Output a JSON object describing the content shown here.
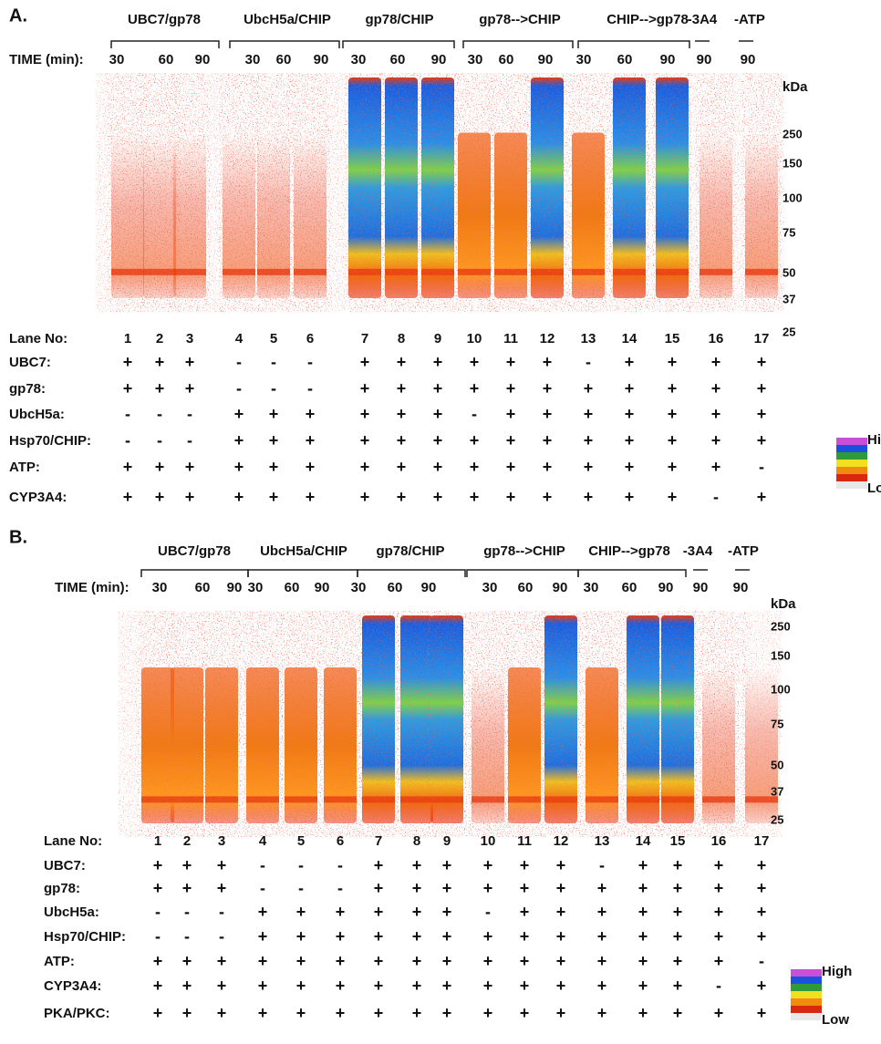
{
  "panels": [
    {
      "label": "A.",
      "groups": [
        "UBC7/gp78",
        "UbcH5a/CHIP",
        "gp78/CHIP",
        "gp78-->CHIP",
        "CHIP-->gp78",
        "-3A4",
        "-ATP"
      ],
      "time_label": "TIME (min):",
      "times": [
        "30",
        "60",
        "90",
        "30",
        "60",
        "90",
        "30",
        "60",
        "90",
        "30",
        "60",
        "90",
        "30",
        "60",
        "90",
        "90",
        "90"
      ],
      "kda_label": "kDa",
      "kda": [
        "250",
        "150",
        "100",
        "75",
        "50",
        "37",
        "25"
      ],
      "lane_label": "Lane No:",
      "lanes": [
        "1",
        "2",
        "3",
        "4",
        "5",
        "6",
        "7",
        "8",
        "9",
        "10",
        "11",
        "12",
        "13",
        "14",
        "15",
        "16",
        "17"
      ],
      "rows": [
        {
          "name": "UBC7:",
          "signs": [
            "+",
            "+",
            "+",
            "-",
            "-",
            "-",
            "+",
            "+",
            "+",
            "+",
            "+",
            "+",
            "-",
            "+",
            "+",
            "+",
            "+"
          ]
        },
        {
          "name": "gp78:",
          "signs": [
            "+",
            "+",
            "+",
            "-",
            "-",
            "-",
            "+",
            "+",
            "+",
            "+",
            "+",
            "+",
            "+",
            "+",
            "+",
            "+",
            "+"
          ]
        },
        {
          "name": "UbcH5a:",
          "signs": [
            "-",
            "-",
            "-",
            "+",
            "+",
            "+",
            "+",
            "+",
            "+",
            "-",
            "+",
            "+",
            "+",
            "+",
            "+",
            "+",
            "+"
          ]
        },
        {
          "name": "Hsp70/CHIP:",
          "signs": [
            "-",
            "-",
            "-",
            "+",
            "+",
            "+",
            "+",
            "+",
            "+",
            "+",
            "+",
            "+",
            "+",
            "+",
            "+",
            "+",
            "+"
          ]
        },
        {
          "name": "ATP:",
          "signs": [
            "+",
            "+",
            "+",
            "+",
            "+",
            "+",
            "+",
            "+",
            "+",
            "+",
            "+",
            "+",
            "+",
            "+",
            "+",
            "+",
            "-"
          ]
        },
        {
          "name": "CYP3A4:",
          "signs": [
            "+",
            "+",
            "+",
            "+",
            "+",
            "+",
            "+",
            "+",
            "+",
            "+",
            "+",
            "+",
            "+",
            "+",
            "+",
            "-",
            "+"
          ]
        }
      ],
      "legend": {
        "high": "High",
        "low": "Low"
      }
    },
    {
      "label": "B.",
      "groups": [
        "UBC7/gp78",
        "UbcH5a/CHIP",
        "gp78/CHIP",
        "gp78-->CHIP",
        "CHIP-->gp78",
        "-3A4",
        "-ATP"
      ],
      "time_label": "TIME (min):",
      "times": [
        "30",
        "60",
        "90",
        "30",
        "60",
        "90",
        "30",
        "60",
        "90",
        "30",
        "60",
        "90",
        "30",
        "60",
        "90",
        "90",
        "90"
      ],
      "kda_label": "kDa",
      "kda": [
        "250",
        "150",
        "100",
        "75",
        "50",
        "37",
        "25"
      ],
      "lane_label": "Lane No:",
      "lanes": [
        "1",
        "2",
        "3",
        "4",
        "5",
        "6",
        "7",
        "8",
        "9",
        "10",
        "11",
        "12",
        "13",
        "14",
        "15",
        "16",
        "17"
      ],
      "rows": [
        {
          "name": "UBC7:",
          "signs": [
            "+",
            "+",
            "+",
            "-",
            "-",
            "-",
            "+",
            "+",
            "+",
            "+",
            "+",
            "+",
            "-",
            "+",
            "+",
            "+",
            "+"
          ]
        },
        {
          "name": "gp78:",
          "signs": [
            "+",
            "+",
            "+",
            "-",
            "-",
            "-",
            "+",
            "+",
            "+",
            "+",
            "+",
            "+",
            "+",
            "+",
            "+",
            "+",
            "+"
          ]
        },
        {
          "name": "UbcH5a:",
          "signs": [
            "-",
            "-",
            "-",
            "+",
            "+",
            "+",
            "+",
            "+",
            "+",
            "-",
            "+",
            "+",
            "+",
            "+",
            "+",
            "+",
            "+"
          ]
        },
        {
          "name": "Hsp70/CHIP:",
          "signs": [
            "-",
            "-",
            "-",
            "+",
            "+",
            "+",
            "+",
            "+",
            "+",
            "+",
            "+",
            "+",
            "+",
            "+",
            "+",
            "+",
            "+"
          ]
        },
        {
          "name": "ATP:",
          "signs": [
            "+",
            "+",
            "+",
            "+",
            "+",
            "+",
            "+",
            "+",
            "+",
            "+",
            "+",
            "+",
            "+",
            "+",
            "+",
            "+",
            "-"
          ]
        },
        {
          "name": "CYP3A4:",
          "signs": [
            "+",
            "+",
            "+",
            "+",
            "+",
            "+",
            "+",
            "+",
            "+",
            "+",
            "+",
            "+",
            "+",
            "+",
            "+",
            "-",
            "+"
          ]
        },
        {
          "name": "PKA/PKC:",
          "signs": [
            "+",
            "+",
            "+",
            "+",
            "+",
            "+",
            "+",
            "+",
            "+",
            "+",
            "+",
            "+",
            "+",
            "+",
            "+",
            "+",
            "+"
          ]
        }
      ],
      "legend": {
        "high": "High",
        "low": "Low"
      }
    }
  ]
}
